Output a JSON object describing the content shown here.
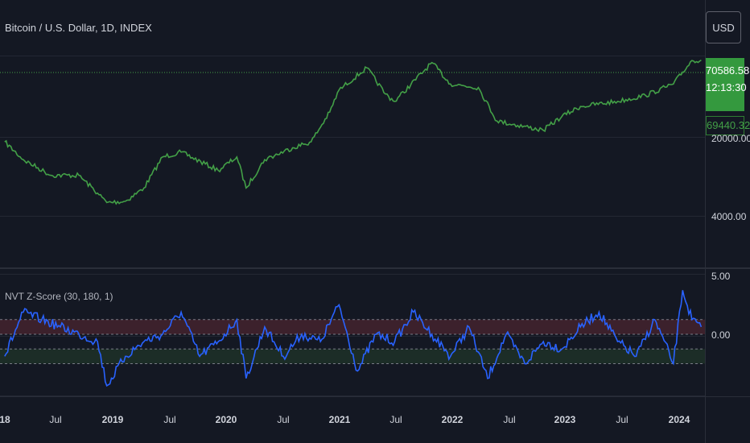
{
  "header": {
    "symbol_title": "Bitcoin / U.S. Dollar, 1D, INDEX",
    "currency_button": "USD"
  },
  "price_panel": {
    "last_price": "70586.58",
    "countdown": "12:13:30",
    "secondary_price": "69440.32",
    "y_tick_labels": [
      "20000.00",
      "4000.00"
    ],
    "line_color": "#43a047",
    "last_price_color": "#34993e"
  },
  "indicator_panel": {
    "title": "NVT Z-Score (30, 180, 1)",
    "y_tick_labels": [
      "5.00",
      "0.00"
    ],
    "line_color": "#2962ff",
    "band_colors": {
      "upper": "#5c2a35",
      "lower": "#23402c"
    }
  },
  "x_axis": {
    "labels": [
      {
        "text": "18",
        "bold": true
      },
      {
        "text": "Jul",
        "bold": false
      },
      {
        "text": "2019",
        "bold": true
      },
      {
        "text": "Jul",
        "bold": false
      },
      {
        "text": "2020",
        "bold": true
      },
      {
        "text": "Jul",
        "bold": false
      },
      {
        "text": "2021",
        "bold": true
      },
      {
        "text": "Jul",
        "bold": false
      },
      {
        "text": "2022",
        "bold": true
      },
      {
        "text": "Jul",
        "bold": false
      },
      {
        "text": "2023",
        "bold": true
      },
      {
        "text": "Jul",
        "bold": false
      },
      {
        "text": "2024",
        "bold": true
      }
    ]
  },
  "chart_data": [
    {
      "type": "line",
      "scale": "log",
      "ylim": [
        1000,
        90000
      ],
      "x": [
        "2018-01",
        "2018-03",
        "2018-06",
        "2018-09",
        "2018-11",
        "2018-12",
        "2019-02",
        "2019-04",
        "2019-06",
        "2019-08",
        "2019-12",
        "2020-02",
        "2020-03",
        "2020-05",
        "2020-08",
        "2020-10",
        "2020-12",
        "2021-01",
        "2021-04",
        "2021-06",
        "2021-07",
        "2021-11",
        "2022-01",
        "2022-04",
        "2022-06",
        "2022-11",
        "2023-01",
        "2023-03",
        "2023-07",
        "2023-10",
        "2024-01",
        "2024-03",
        "2024-04"
      ],
      "series": [
        {
          "values": [
            13000,
            9000,
            6500,
            6500,
            4500,
            3700,
            3800,
            5000,
            9500,
            10500,
            7200,
            9500,
            5000,
            9000,
            11500,
            13000,
            24000,
            38000,
            60000,
            35000,
            30000,
            67000,
            43000,
            40000,
            20000,
            16500,
            22000,
            27000,
            30000,
            34000,
            43000,
            70000,
            70586
          ]
        }
      ]
    },
    {
      "type": "line",
      "ylim": [
        -3,
        5
      ],
      "x": [
        "2018-01",
        "2018-03",
        "2018-05",
        "2018-07",
        "2018-09",
        "2018-11",
        "2018-12",
        "2019-02",
        "2019-04",
        "2019-06",
        "2019-08",
        "2019-10",
        "2019-12",
        "2020-02",
        "2020-03",
        "2020-05",
        "2020-07",
        "2020-09",
        "2020-11",
        "2021-01",
        "2021-03",
        "2021-05",
        "2021-07",
        "2021-09",
        "2021-11",
        "2022-01",
        "2022-03",
        "2022-05",
        "2022-07",
        "2022-09",
        "2022-11",
        "2023-01",
        "2023-03",
        "2023-05",
        "2023-07",
        "2023-09",
        "2023-11",
        "2024-01",
        "2024-02",
        "2024-03",
        "2024-04"
      ],
      "series": [
        {
          "values": [
            -0.5,
            2.5,
            2.0,
            1.5,
            1.0,
            0.5,
            -2.5,
            -0.5,
            0.5,
            1.0,
            2.5,
            -0.5,
            0.5,
            2.0,
            -2.0,
            1.5,
            -0.5,
            1.0,
            0.5,
            3.0,
            -1.5,
            1.0,
            0.5,
            2.5,
            1.0,
            -0.5,
            1.5,
            -2.0,
            1.0,
            -1.0,
            0.5,
            0.0,
            1.5,
            2.5,
            0.5,
            -0.5,
            2.0,
            -1.0,
            4.0,
            2.0,
            1.5
          ]
        }
      ],
      "bands": [
        {
          "name": "upper",
          "from": 1.0,
          "to": 2.0
        },
        {
          "name": "lower",
          "from": -1.0,
          "to": 0.0
        }
      ]
    }
  ]
}
